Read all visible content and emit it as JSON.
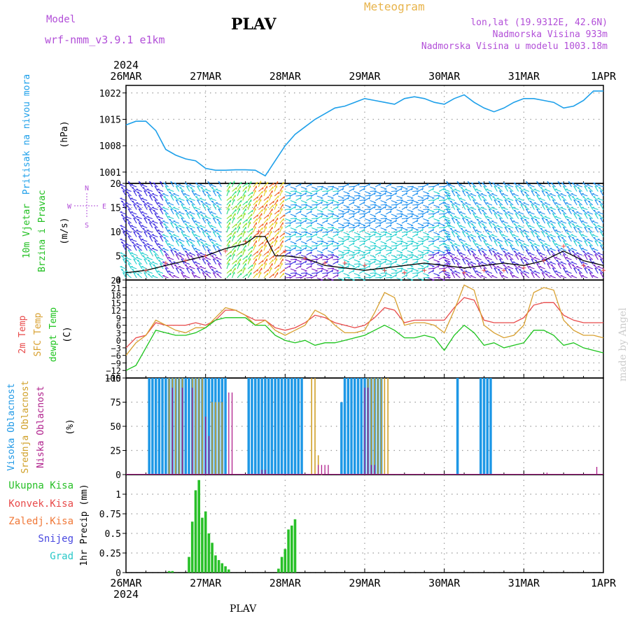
{
  "header": {
    "model_label": "Model",
    "model_name": "wrf-nmm_v3.9.1  e1km",
    "title": "Meteogram",
    "station": "PLAV",
    "lonlat": "lon,lat (19.9312E, 42.6N)",
    "altitude": "Nadmorska Visina 933m",
    "model_altitude": "Nadmorska Visina u modelu 1003.18m"
  },
  "footer": {
    "station": "PLAV",
    "credit": "made by Angel"
  },
  "time_axis": {
    "year": "2024",
    "labels": [
      "26MAR",
      "27MAR",
      "28MAR",
      "29MAR",
      "30MAR",
      "31MAR",
      "1APR"
    ]
  },
  "colors": {
    "pressure": "#1ea0ea",
    "temp2m": "#e84a4a",
    "sfctemp": "#d8a030",
    "dewpt": "#1cc41c",
    "cloud_high": "#1e98e6",
    "cloud_mid": "#d0a028",
    "cloud_low": "#b0208c",
    "precip_total": "#28c028",
    "wind_speed": "#000000",
    "gust": "#e84a4a"
  },
  "chart_data": [
    {
      "type": "line",
      "panel": "pressure",
      "ylabel": [
        "Pritisak na nivou mora",
        "(hPa)"
      ],
      "ylim": [
        998,
        1024
      ],
      "yticks": [
        1001,
        1008,
        1015,
        1022
      ],
      "x_unit": "hours since 26MAR 00 UTC",
      "series": [
        {
          "x": [
            0,
            3,
            6,
            9,
            12,
            15,
            18,
            21,
            24,
            27,
            30,
            33,
            36,
            39,
            42,
            45,
            48,
            51,
            54,
            57,
            60,
            63,
            66,
            69,
            72,
            75,
            78,
            81,
            84,
            87,
            90,
            93,
            96,
            99,
            102,
            105,
            108,
            111,
            114,
            117,
            120,
            123,
            126,
            129,
            132,
            135,
            138,
            141,
            144
          ],
          "values": [
            1013.5,
            1014.5,
            1014.5,
            1012,
            1007,
            1005.5,
            1004.5,
            1004,
            1002,
            1001.5,
            1001.5,
            1001.6,
            1001.6,
            1001.5,
            1000,
            1004,
            1008,
            1011,
            1013,
            1015,
            1016.5,
            1018,
            1018.5,
            1019.5,
            1020.5,
            1020,
            1019.5,
            1019,
            1020.5,
            1021,
            1020.5,
            1019.5,
            1019,
            1020.5,
            1021.5,
            1019.5,
            1018,
            1017,
            1018,
            1019.5,
            1020.5,
            1020.5,
            1020,
            1019.5,
            1018,
            1018.5,
            1020,
            1022.5,
            1022.5
          ]
        }
      ]
    },
    {
      "type": "line",
      "panel": "wind",
      "ylabel": [
        "10m Vjetar",
        "Brzina i Pravac",
        "(m/s)"
      ],
      "compass": [
        "N",
        "E",
        "S",
        "W"
      ],
      "ylim": [
        0,
        20
      ],
      "yticks": [
        0,
        5,
        10,
        15,
        20
      ],
      "series": [
        {
          "x": [
            0,
            6,
            12,
            18,
            24,
            30,
            36,
            39,
            42,
            45,
            48,
            54,
            60,
            66,
            72,
            78,
            84,
            90,
            96,
            102,
            108,
            114,
            120,
            126,
            132,
            138,
            144
          ],
          "values": [
            1.5,
            2,
            3,
            4,
            5,
            6.5,
            7.5,
            9,
            9,
            5,
            5,
            4.5,
            3,
            2.5,
            2,
            2.5,
            3,
            3.5,
            3,
            2.5,
            3,
            3.5,
            3,
            4,
            6,
            4,
            3
          ]
        },
        {
          "x": [
            6,
            12,
            18,
            24,
            30,
            36,
            40,
            48,
            54,
            60,
            66,
            72,
            78,
            84,
            90,
            96,
            102,
            108,
            114,
            120,
            126,
            132,
            138,
            144
          ],
          "values": [
            2,
            3.5,
            4,
            5,
            6,
            8,
            10,
            6,
            4.5,
            3.5,
            3.5,
            3,
            2,
            1.5,
            2,
            2,
            1.5,
            2,
            2,
            2.5,
            4,
            7,
            3,
            2
          ]
        }
      ]
    },
    {
      "type": "line",
      "panel": "temperature",
      "ylabel": [
        "2m Temp",
        "SFC Temp",
        "dewpt Temp",
        "(C)"
      ],
      "ylim": [
        -15,
        24
      ],
      "yticks": [
        -15,
        -12,
        -9,
        -6,
        -3,
        0,
        3,
        6,
        9,
        12,
        15,
        18,
        21,
        24
      ],
      "series": [
        {
          "name": "2m Temp",
          "x": [
            0,
            3,
            6,
            9,
            12,
            15,
            18,
            21,
            24,
            27,
            30,
            33,
            36,
            39,
            42,
            45,
            48,
            51,
            54,
            57,
            60,
            63,
            66,
            69,
            72,
            75,
            78,
            81,
            84,
            87,
            90,
            93,
            96,
            99,
            102,
            105,
            108,
            111,
            114,
            117,
            120,
            123,
            126,
            129,
            132,
            135,
            138,
            141,
            144
          ],
          "values": [
            -3,
            1,
            2,
            7,
            6,
            6,
            6,
            7,
            6,
            8,
            12,
            12,
            10,
            8,
            8,
            5,
            4,
            5,
            7,
            10,
            9,
            7,
            6,
            5,
            6,
            9,
            13,
            12,
            7,
            8,
            8,
            8,
            8,
            13,
            17,
            16,
            8,
            7,
            7,
            7,
            9,
            14,
            15,
            15,
            10,
            8,
            7,
            7,
            7
          ]
        },
        {
          "name": "SFC Temp",
          "x": [
            0,
            3,
            6,
            9,
            12,
            15,
            18,
            21,
            24,
            27,
            30,
            33,
            36,
            39,
            42,
            45,
            48,
            51,
            54,
            57,
            60,
            63,
            66,
            69,
            72,
            75,
            78,
            81,
            84,
            87,
            90,
            93,
            96,
            99,
            102,
            105,
            108,
            111,
            114,
            117,
            120,
            123,
            126,
            129,
            132,
            135,
            138,
            141,
            144
          ],
          "values": [
            -6,
            -1,
            2,
            8,
            6,
            4,
            3,
            5,
            5,
            9,
            13,
            12,
            10,
            6,
            8,
            4,
            2,
            4,
            6,
            12,
            10,
            6,
            3,
            3,
            4,
            11,
            19,
            17,
            6,
            7,
            7,
            6,
            3,
            12,
            22,
            20,
            6,
            3,
            1,
            2,
            6,
            19,
            21,
            20,
            8,
            4,
            2,
            2,
            1
          ]
        },
        {
          "name": "dewpt Temp",
          "x": [
            0,
            3,
            6,
            9,
            12,
            15,
            18,
            21,
            24,
            27,
            30,
            33,
            36,
            39,
            42,
            45,
            48,
            51,
            54,
            57,
            60,
            63,
            66,
            69,
            72,
            75,
            78,
            81,
            84,
            87,
            90,
            93,
            96,
            99,
            102,
            105,
            108,
            111,
            114,
            117,
            120,
            123,
            126,
            129,
            132,
            135,
            138,
            141,
            144
          ],
          "values": [
            -12,
            -10,
            -3,
            4,
            3,
            2,
            2,
            3,
            5,
            8,
            9,
            9,
            9,
            6,
            6,
            2,
            0,
            -1,
            0,
            -2,
            -1,
            -1,
            0,
            1,
            2,
            4,
            6,
            4,
            1,
            1,
            2,
            1,
            -4,
            2,
            6,
            3,
            -2,
            -1,
            -3,
            -2,
            -1,
            4,
            4,
            2,
            -2,
            -1,
            -3,
            -4,
            -5
          ]
        }
      ]
    },
    {
      "type": "bar",
      "panel": "cloud",
      "ylabel": [
        "Visoka Oblacnost",
        "Srednja Oblacnost",
        "Niska Oblacnost",
        "(%)"
      ],
      "ylim": [
        0,
        100
      ],
      "yticks": [
        0,
        25,
        50,
        75,
        100
      ],
      "series": [
        {
          "name": "Visoka Oblacnost",
          "x": [
            7,
            8,
            9,
            10,
            11,
            12,
            13,
            14,
            15,
            16,
            17,
            18,
            19,
            20,
            21,
            22,
            23,
            24,
            25,
            26,
            27,
            28,
            29,
            30,
            37,
            38,
            39,
            40,
            41,
            42,
            43,
            44,
            45,
            46,
            47,
            48,
            49,
            50,
            51,
            52,
            53,
            65,
            66,
            67,
            68,
            69,
            70,
            71,
            72,
            73,
            74,
            75,
            76,
            77,
            100,
            107,
            108,
            109,
            110
          ],
          "values": [
            100,
            100,
            100,
            100,
            100,
            100,
            100,
            100,
            100,
            100,
            100,
            100,
            100,
            100,
            100,
            100,
            100,
            100,
            100,
            100,
            100,
            100,
            100,
            100,
            100,
            100,
            100,
            100,
            100,
            100,
            100,
            100,
            100,
            100,
            100,
            100,
            100,
            100,
            100,
            100,
            100,
            75,
            100,
            100,
            100,
            100,
            100,
            100,
            100,
            100,
            100,
            100,
            100,
            100,
            100,
            100,
            100,
            100,
            100
          ]
        },
        {
          "name": "Srednja Oblacnost",
          "x": [
            13,
            14,
            15,
            16,
            17,
            20,
            21,
            22,
            23,
            26,
            27,
            28,
            29,
            56,
            57,
            58,
            59,
            73,
            74,
            75,
            76,
            77,
            78,
            79
          ],
          "values": [
            100,
            100,
            100,
            100,
            100,
            100,
            100,
            100,
            100,
            75,
            75,
            75,
            75,
            100,
            100,
            20,
            0,
            100,
            100,
            100,
            100,
            100,
            100,
            100
          ]
        },
        {
          "name": "Niska Oblacnost",
          "x": [
            14,
            17,
            20,
            24,
            25,
            31,
            32,
            41,
            42,
            58,
            59,
            60,
            61,
            72,
            73,
            74,
            75,
            127,
            142
          ],
          "values": [
            90,
            90,
            90,
            60,
            40,
            85,
            85,
            5,
            5,
            10,
            10,
            10,
            10,
            90,
            90,
            10,
            10,
            2,
            8
          ]
        }
      ]
    },
    {
      "type": "bar",
      "panel": "precip",
      "ylabel": [
        "Ukupna Kisa",
        "Konvek.Kisa",
        "Zaledj.Kisa",
        "Snijeg",
        "Grad",
        "1hr Precip (mm)"
      ],
      "ylim": [
        0,
        1.25
      ],
      "yticks": [
        0,
        0.25,
        0.5,
        0.75,
        1
      ],
      "series": [
        {
          "name": "Ukupna Kisa",
          "x": [
            13,
            14,
            19,
            20,
            21,
            22,
            23,
            24,
            25,
            26,
            27,
            28,
            29,
            30,
            31,
            46,
            47,
            48,
            49,
            50,
            51
          ],
          "values": [
            0.02,
            0.02,
            0.2,
            0.65,
            1.05,
            1.18,
            0.7,
            0.78,
            0.5,
            0.38,
            0.22,
            0.16,
            0.12,
            0.08,
            0.04,
            0.05,
            0.2,
            0.3,
            0.55,
            0.6,
            0.68
          ]
        }
      ]
    }
  ]
}
